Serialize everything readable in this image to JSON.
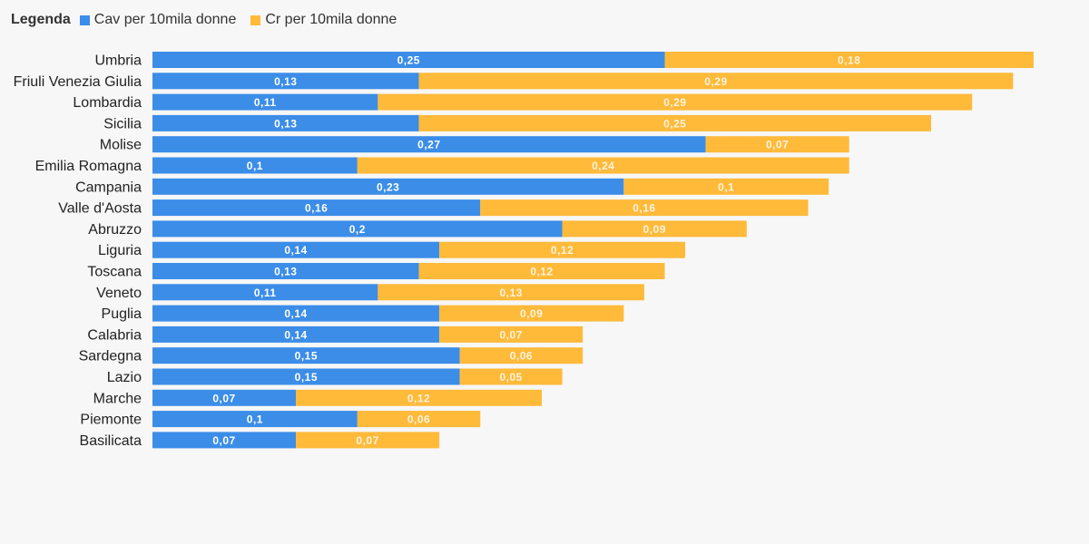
{
  "legend": {
    "title": "Legenda",
    "items": [
      {
        "label": "Cav per 10mila donne",
        "color": "#3b8de8"
      },
      {
        "label": "Cr per 10mila donne",
        "color": "#ffba3a"
      }
    ]
  },
  "chart_data": {
    "type": "bar",
    "orientation": "horizontal",
    "stacked": true,
    "categories": [
      "Umbria",
      "Friuli Venezia Giulia",
      "Lombardia",
      "Sicilia",
      "Molise",
      "Emilia Romagna",
      "Campania",
      "Valle d'Aosta",
      "Abruzzo",
      "Liguria",
      "Toscana",
      "Veneto",
      "Puglia",
      "Calabria",
      "Sardegna",
      "Lazio",
      "Marche",
      "Piemonte",
      "Basilicata"
    ],
    "series": [
      {
        "name": "Cav per 10mila donne",
        "color": "#3b8de8",
        "values": [
          0.25,
          0.13,
          0.11,
          0.13,
          0.27,
          0.1,
          0.23,
          0.16,
          0.2,
          0.14,
          0.13,
          0.11,
          0.14,
          0.14,
          0.15,
          0.15,
          0.07,
          0.1,
          0.07
        ],
        "labels": [
          "0,25",
          "0,13",
          "0,11",
          "0,13",
          "0,27",
          "0,1",
          "0,23",
          "0,16",
          "0,2",
          "0,14",
          "0,13",
          "0,11",
          "0,14",
          "0,14",
          "0,15",
          "0,15",
          "0,07",
          "0,1",
          "0,07"
        ]
      },
      {
        "name": "Cr per 10mila donne",
        "color": "#ffba3a",
        "values": [
          0.18,
          0.29,
          0.29,
          0.25,
          0.07,
          0.24,
          0.1,
          0.16,
          0.09,
          0.12,
          0.12,
          0.13,
          0.09,
          0.07,
          0.06,
          0.05,
          0.12,
          0.06,
          0.07
        ],
        "labels": [
          "0,18",
          "0,29",
          "0,29",
          "0,25",
          "0,07",
          "0,24",
          "0,1",
          "0,16",
          "0,09",
          "0,12",
          "0,12",
          "0,13",
          "0,09",
          "0,07",
          "0,06",
          "0,05",
          "0,12",
          "0,06",
          "0,07"
        ]
      }
    ],
    "xlim": [
      0,
      0.43
    ],
    "grid": false,
    "legend_position": "top-left"
  }
}
